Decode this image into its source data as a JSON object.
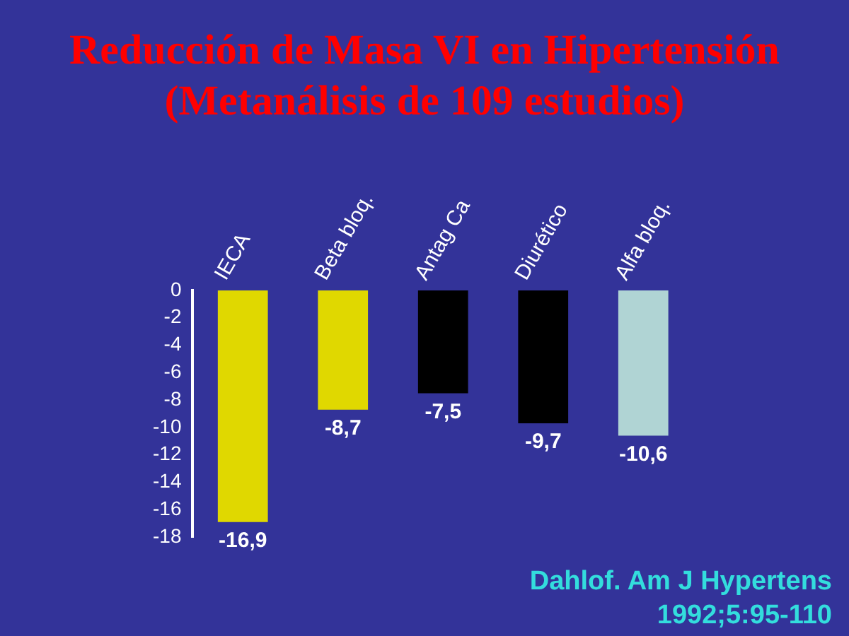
{
  "chart_data": {
    "type": "bar",
    "title": "Reducción de Masa VI en Hipertensión\n(Metanálisis de 109 estudios)",
    "categories": [
      "IECA",
      "Beta bloq.",
      "Antag Ca",
      "Diurético",
      "Alfa bloq."
    ],
    "values": [
      -16.9,
      -8.7,
      -7.5,
      -9.7,
      -10.6
    ],
    "colors": [
      "#e0d800",
      "#e0d800",
      "#000000",
      "#000000",
      "#b0d4d4"
    ],
    "value_labels": [
      "-16,9",
      "-8,7",
      "-7,5",
      "-9,7",
      "-10,6"
    ],
    "ylim": [
      -18,
      0
    ],
    "yticks": [
      0,
      -2,
      -4,
      -6,
      -8,
      -10,
      -12,
      -14,
      -16,
      -18
    ],
    "grid": false,
    "legend": false,
    "annotations": [
      "Dahlof. Am J Hypertens\n1992;5:95-110"
    ]
  }
}
